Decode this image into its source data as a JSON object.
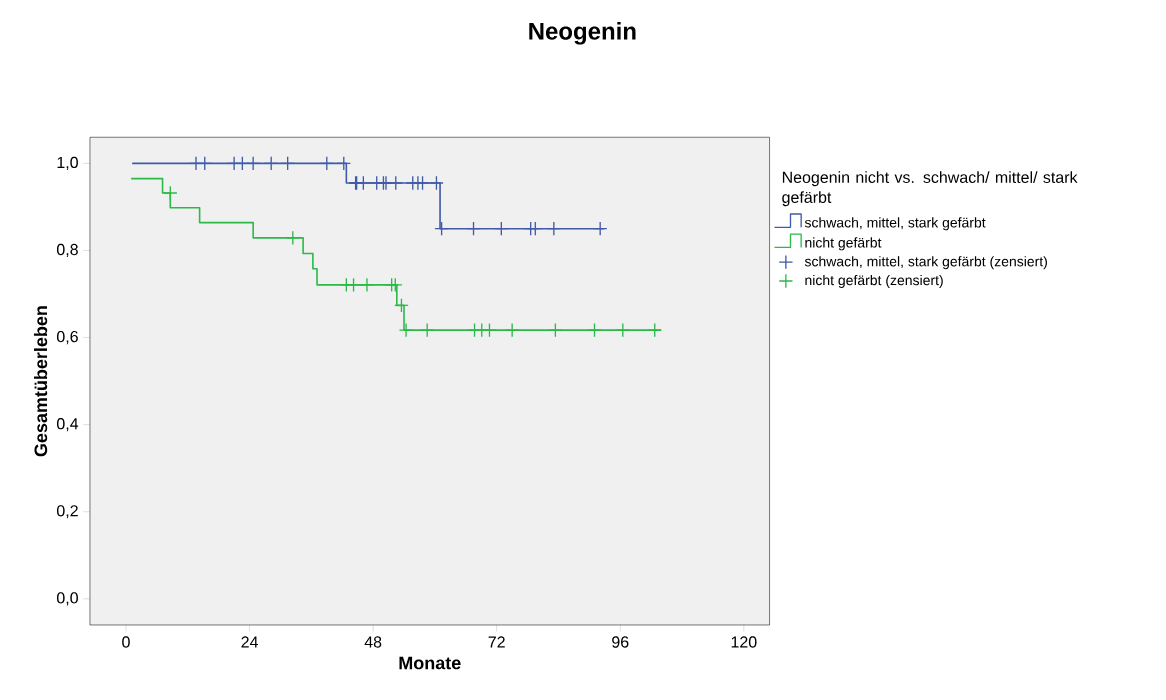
{
  "chart_data": {
    "type": "step",
    "title": "Neogenin",
    "xlabel": "Monate",
    "ylabel": "Gesamtüberleben",
    "legend_title": "Neogenin nicht vs. schwach/ mittel/ stark gefärbt",
    "legend": "right",
    "grid": false,
    "xlim": [
      -7,
      125
    ],
    "ylim": [
      -0.06,
      1.06
    ],
    "xticks": [
      0,
      24,
      48,
      72,
      96,
      120
    ],
    "yticks": [
      {
        "value": 0,
        "label": "0,0"
      },
      {
        "value": 0.2,
        "label": "0,2"
      },
      {
        "value": 0.4,
        "label": "0,4"
      },
      {
        "value": 0.6,
        "label": "0,6"
      },
      {
        "value": 0.8,
        "label": "0,8"
      },
      {
        "value": 1,
        "label": "1,0"
      }
    ],
    "series": [
      {
        "name": "schwach, mittel, stark gefärbt",
        "color": "#3f5ba9",
        "x": [
          1.2,
          42.8,
          61,
          92.9
        ],
        "values": [
          1,
          0.955,
          0.85,
          0.85
        ]
      },
      {
        "name": "nicht gefärbt",
        "color": "#2db84a",
        "x": [
          1,
          7.1,
          8.6,
          14.3,
          24.7,
          34.4,
          36.3,
          37.1,
          52.6,
          54.0,
          103.9
        ],
        "values": [
          0.965,
          0.932,
          0.898,
          0.864,
          0.829,
          0.793,
          0.758,
          0.721,
          0.674,
          0.617,
          0.617
        ]
      },
      {
        "name": "schwach, mittel, stark gefärbt (zensiert)",
        "type": "scatter",
        "marker": "cross",
        "color": "#3f5ba9",
        "x": [
          13.6,
          15.3,
          21.0,
          22.6,
          24.7,
          28.2,
          31.4,
          39.0,
          42.3,
          44.6,
          44.8,
          46.1,
          48.7,
          50.0,
          50.5,
          52.4,
          55.7,
          56.7,
          57.6,
          60.3,
          61.3,
          67.5,
          72.9,
          78.6,
          79.5,
          83.1,
          92.1
        ],
        "values": [
          1,
          1,
          1,
          1,
          1,
          1,
          1,
          1,
          1,
          0.955,
          0.955,
          0.955,
          0.955,
          0.955,
          0.955,
          0.955,
          0.955,
          0.955,
          0.955,
          0.955,
          0.85,
          0.85,
          0.85,
          0.85,
          0.85,
          0.85,
          0.85
        ]
      },
      {
        "name": "nicht gefärbt (zensiert)",
        "type": "scatter",
        "marker": "cross",
        "color": "#2db84a",
        "x": [
          8.6,
          32.4,
          42.8,
          44.2,
          46.8,
          51.6,
          52.3,
          53.5,
          54.4,
          58.5,
          67.7,
          69.1,
          70.6,
          75.0,
          83.4,
          91.0,
          96.5,
          102.7
        ],
        "values": [
          0.932,
          0.829,
          0.721,
          0.721,
          0.721,
          0.721,
          0.721,
          0.674,
          0.617,
          0.617,
          0.617,
          0.617,
          0.617,
          0.617,
          0.617,
          0.617,
          0.617,
          0.617
        ]
      }
    ]
  }
}
